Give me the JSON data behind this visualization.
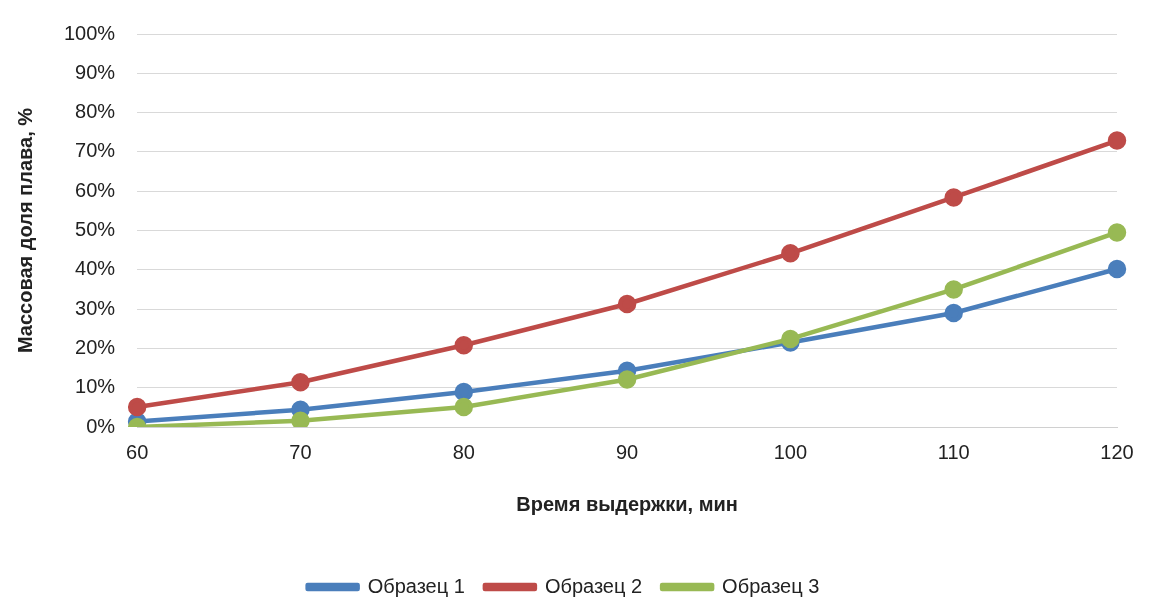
{
  "chart_data": {
    "type": "line",
    "xlabel": "Время выдержки, мин",
    "ylabel": "Массовая доля плава, %",
    "categories": [
      "60",
      "70",
      "80",
      "90",
      "100",
      "110",
      "120"
    ],
    "series": [
      {
        "name": "Образец 1",
        "color": "#4a7ebb",
        "values": [
          1.4,
          4.4,
          8.9,
          14.3,
          21.5,
          29,
          40.2
        ]
      },
      {
        "name": "Образец 2",
        "color": "#be4b48",
        "values": [
          5.1,
          11.4,
          20.8,
          31.3,
          44.2,
          58.4,
          72.9
        ]
      },
      {
        "name": "Образец 3",
        "color": "#98b954",
        "values": [
          0,
          1.6,
          5.1,
          12.1,
          22.4,
          35,
          49.5
        ]
      }
    ],
    "ylim": [
      0,
      100
    ],
    "yticks": [
      {
        "value": 0,
        "label": "0%"
      },
      {
        "value": 10,
        "label": "10%"
      },
      {
        "value": 20,
        "label": "20%"
      },
      {
        "value": 30,
        "label": "30%"
      },
      {
        "value": 40,
        "label": "40%"
      },
      {
        "value": 50,
        "label": "50%"
      },
      {
        "value": 60,
        "label": "60%"
      },
      {
        "value": 70,
        "label": "70%"
      },
      {
        "value": 80,
        "label": "80%"
      },
      {
        "value": 90,
        "label": "90%"
      },
      {
        "value": 100,
        "label": "100%"
      }
    ],
    "grid": "y",
    "legend": "bottom",
    "marker": "circle",
    "line_style": "solid"
  }
}
